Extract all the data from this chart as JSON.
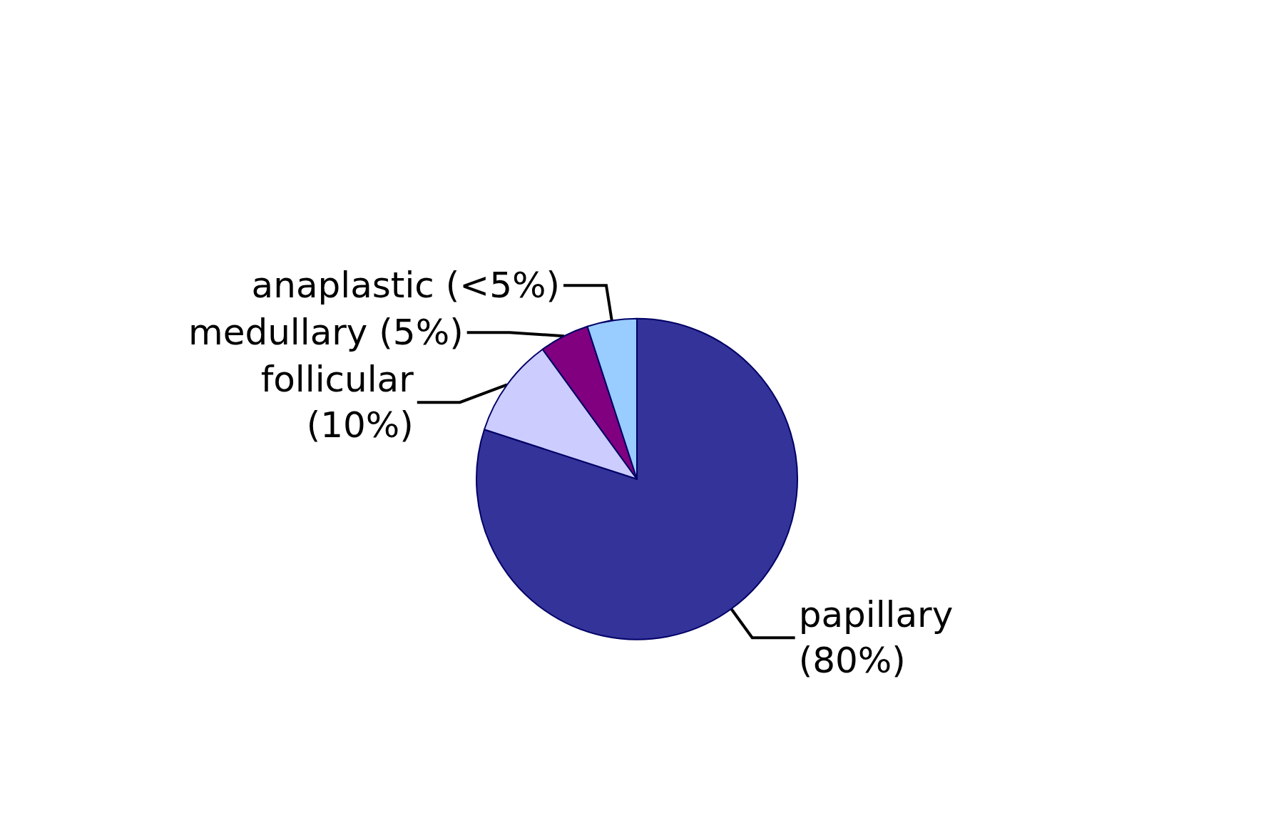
{
  "chart_data": {
    "type": "pie",
    "categories": [
      "papillary",
      "follicular",
      "medullary",
      "anaplastic"
    ],
    "values": [
      80,
      10,
      5,
      5
    ],
    "value_labels": [
      "(80%)",
      "(10%)",
      "(5%)",
      "(<5%)"
    ],
    "colors": [
      "#333399",
      "#ccccff",
      "#800080",
      "#99ccff"
    ]
  }
}
